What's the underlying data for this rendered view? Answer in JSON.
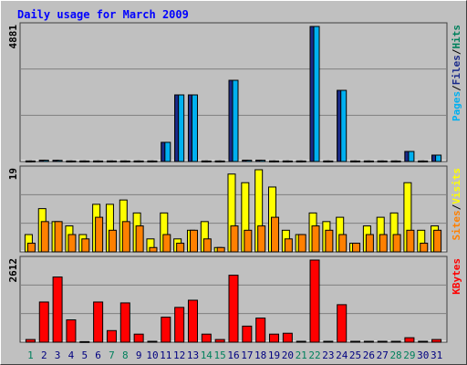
{
  "title": "Daily usage for March 2009",
  "categories": [
    "1",
    "2",
    "3",
    "4",
    "5",
    "6",
    "7",
    "8",
    "9",
    "10",
    "11",
    "12",
    "13",
    "14",
    "15",
    "16",
    "17",
    "18",
    "19",
    "20",
    "21",
    "22",
    "23",
    "24",
    "25",
    "26",
    "27",
    "28",
    "29",
    "30",
    "31"
  ],
  "weekend": [
    true,
    false,
    false,
    false,
    false,
    false,
    true,
    true,
    false,
    false,
    false,
    false,
    false,
    true,
    true,
    false,
    false,
    false,
    false,
    false,
    true,
    true,
    false,
    false,
    false,
    false,
    false,
    true,
    true,
    false,
    false
  ],
  "weekday_label_color": "#000080",
  "weekend_label_color": "#00805c",
  "legend_separator": "/",
  "chart_data": [
    {
      "type": "bar",
      "ylim": [
        0,
        4881
      ],
      "yticks": [
        4881
      ],
      "grid_divisions": 3,
      "series": [
        {
          "name": "Hits",
          "color": "#00805c",
          "values": [
            20,
            45,
            40,
            20,
            20,
            20,
            20,
            20,
            20,
            20,
            693,
            2407,
            2407,
            20,
            20,
            2935,
            45,
            45,
            20,
            20,
            20,
            4881,
            20,
            2572,
            20,
            20,
            20,
            20,
            363,
            20,
            231
          ]
        },
        {
          "name": "Files",
          "color": "#1a2a8a",
          "values": [
            20,
            45,
            40,
            20,
            20,
            20,
            20,
            20,
            20,
            20,
            693,
            2407,
            2407,
            20,
            20,
            2935,
            45,
            45,
            20,
            20,
            20,
            4881,
            20,
            2572,
            20,
            20,
            20,
            20,
            363,
            20,
            231
          ]
        },
        {
          "name": "Pages",
          "color": "#00b0f0",
          "values": [
            20,
            45,
            40,
            20,
            20,
            20,
            20,
            20,
            20,
            20,
            693,
            2407,
            2407,
            20,
            20,
            2935,
            45,
            45,
            20,
            20,
            20,
            4881,
            20,
            2572,
            20,
            20,
            20,
            20,
            363,
            20,
            231
          ]
        }
      ]
    },
    {
      "type": "bar",
      "ylim": [
        0,
        19
      ],
      "yticks": [
        19
      ],
      "grid_divisions": 3,
      "series": [
        {
          "name": "Visits",
          "color": "#ffff00",
          "values": [
            4,
            10,
            7,
            6,
            4,
            11,
            11,
            12,
            9,
            3,
            9,
            3,
            5,
            7,
            1,
            18,
            16,
            19,
            15,
            5,
            4,
            9,
            7,
            8,
            2,
            6,
            8,
            9,
            16,
            5,
            6
          ]
        },
        {
          "name": "Sites",
          "color": "#ff8000",
          "values": [
            2,
            7,
            7,
            4,
            3,
            8,
            5,
            7,
            6,
            1,
            4,
            2,
            5,
            3,
            1,
            6,
            5,
            6,
            8,
            3,
            4,
            6,
            5,
            4,
            2,
            4,
            4,
            4,
            5,
            2,
            5
          ]
        }
      ]
    },
    {
      "type": "bar",
      "ylim": [
        0,
        2612
      ],
      "yticks": [
        2612
      ],
      "grid_divisions": 3,
      "series": [
        {
          "name": "KBytes",
          "color": "#ff0000",
          "values": [
            85,
            1278,
            2073,
            710,
            20,
            1278,
            369,
            1250,
            256,
            28,
            795,
            1107,
            1335,
            256,
            85,
            2130,
            511,
            767,
            256,
            284,
            28,
            2612,
            28,
            1193,
            28,
            28,
            28,
            28,
            142,
            28,
            85
          ]
        }
      ]
    }
  ]
}
